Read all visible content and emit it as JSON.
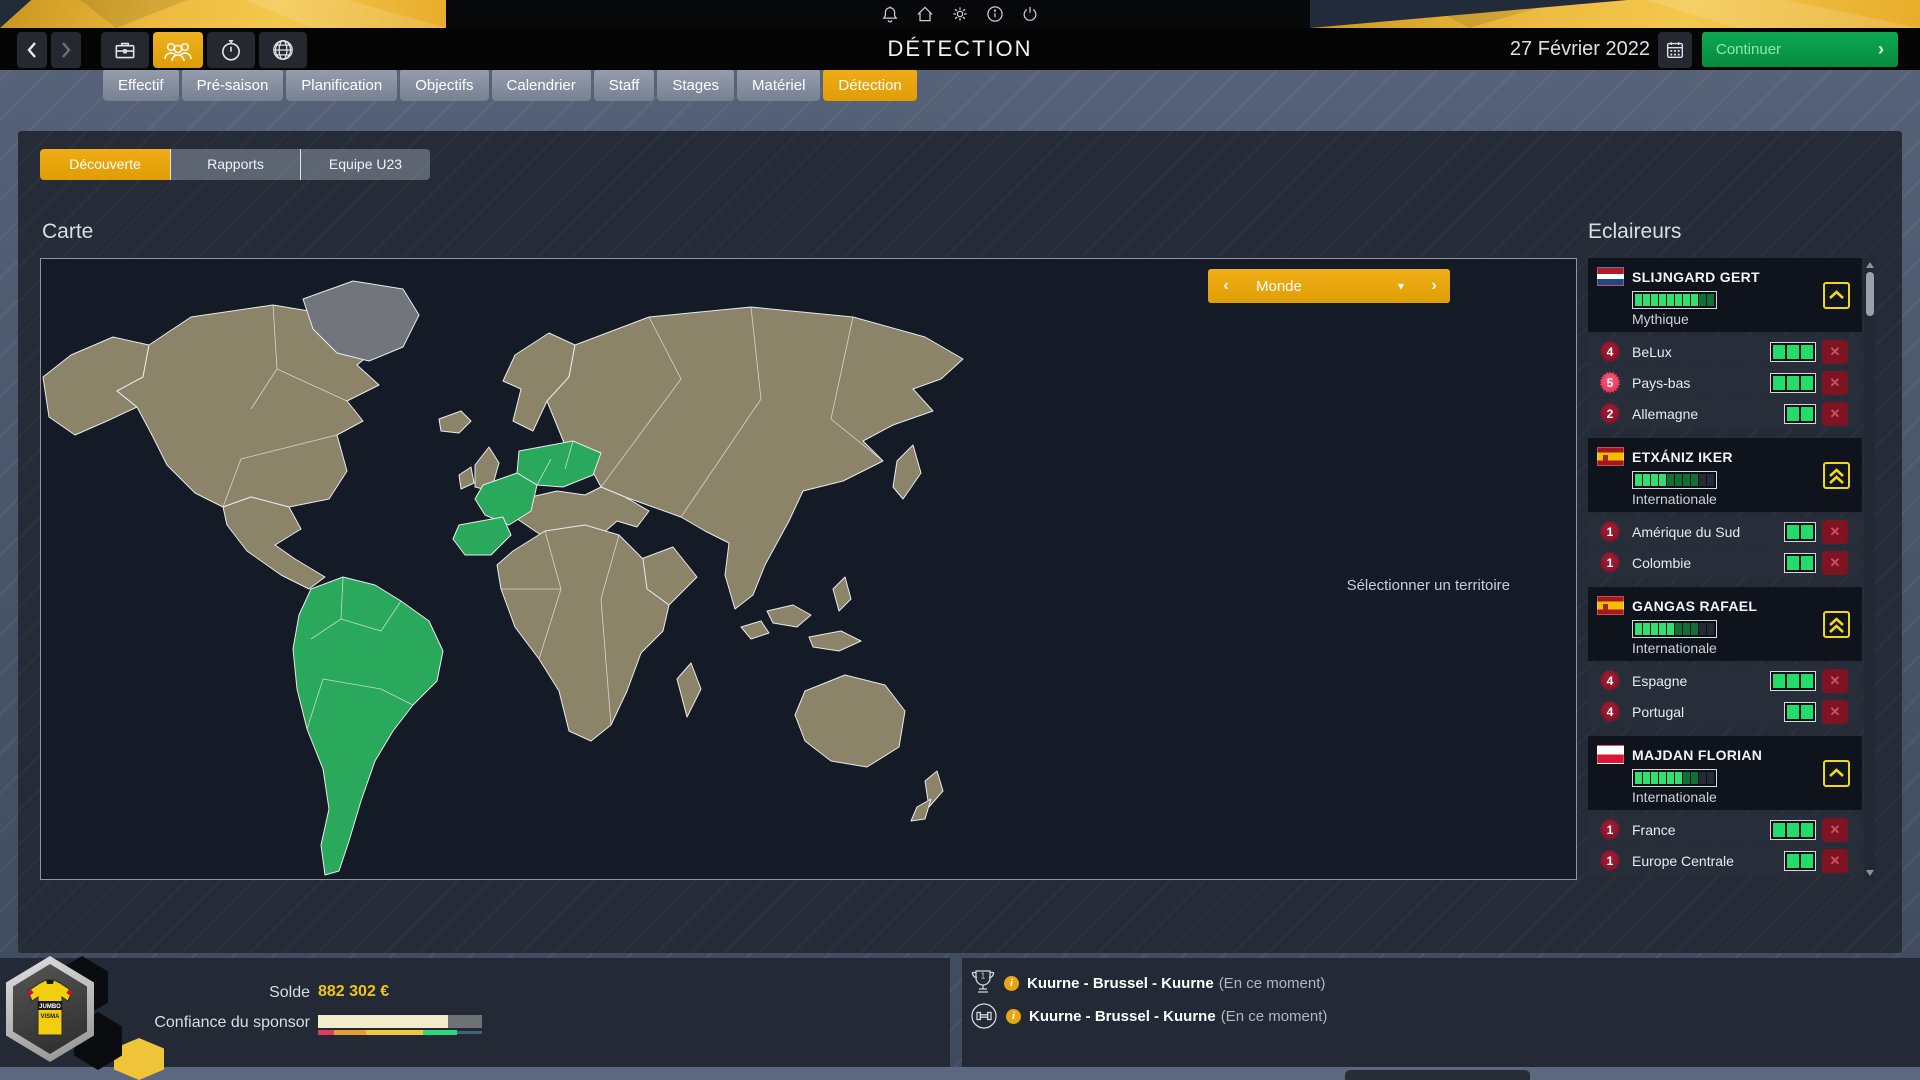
{
  "topbar": {
    "icons": [
      "bell",
      "home",
      "settings",
      "info",
      "power"
    ]
  },
  "header": {
    "title": "DÉTECTION",
    "date": "27 Février 2022",
    "continue_label": "Continuer",
    "nav_icons": [
      "back",
      "forward",
      "briefcase",
      "scouts-trio",
      "stopwatch",
      "globe",
      "calendar"
    ]
  },
  "nav_tabs": {
    "items": [
      {
        "label": "Effectif",
        "active": false
      },
      {
        "label": "Pré-saison",
        "active": false
      },
      {
        "label": "Planification",
        "active": false
      },
      {
        "label": "Objectifs",
        "active": false
      },
      {
        "label": "Calendrier",
        "active": false
      },
      {
        "label": "Staff",
        "active": false
      },
      {
        "label": "Stages",
        "active": false
      },
      {
        "label": "Matériel",
        "active": false
      },
      {
        "label": "Détection",
        "active": true
      }
    ]
  },
  "sub_tabs": {
    "items": [
      {
        "label": "Découverte",
        "active": true
      },
      {
        "label": "Rapports",
        "active": false
      },
      {
        "label": "Equipe U23",
        "active": false
      }
    ]
  },
  "map_section": {
    "title": "Carte",
    "territory_selector": {
      "label": "Monde"
    },
    "hint": "Sélectionner un territoire",
    "colors": {
      "ocean": "#141a26",
      "land": "#8b8468",
      "scouted": "#2aa85c",
      "inactive": "#72767c",
      "border": "#e8eaec"
    },
    "regions_highlighted_green": [
      "South America",
      "Iberia",
      "France",
      "Central Europe"
    ],
    "regions_gray": [
      "Greenland"
    ]
  },
  "scouts_panel": {
    "title": "Eclaireurs",
    "scouts": [
      {
        "name": "SLIJNGARD GERT",
        "flag": "nl",
        "level": "Mythique",
        "skill": {
          "bright": 8,
          "dark": 2,
          "total": 10
        },
        "expand": "single",
        "regions": [
          {
            "count": "4",
            "name": "BeLux",
            "slots": 3,
            "highlight": false
          },
          {
            "count": "5",
            "name": "Pays-bas",
            "slots": 3,
            "highlight": true
          },
          {
            "count": "2",
            "name": "Allemagne",
            "slots": 2,
            "highlight": false
          }
        ]
      },
      {
        "name": "ETXÁNIZ IKER",
        "flag": "es",
        "level": "Internationale",
        "skill": {
          "bright": 4,
          "dark": 4,
          "total": 10
        },
        "expand": "double",
        "regions": [
          {
            "count": "1",
            "name": "Amérique du Sud",
            "slots": 2,
            "highlight": false
          },
          {
            "count": "1",
            "name": "Colombie",
            "slots": 2,
            "highlight": false
          }
        ]
      },
      {
        "name": "GANGAS RAFAEL",
        "flag": "es",
        "level": "Internationale",
        "skill": {
          "bright": 5,
          "dark": 3,
          "total": 10
        },
        "expand": "double",
        "regions": [
          {
            "count": "4",
            "name": "Espagne",
            "slots": 3,
            "highlight": false
          },
          {
            "count": "4",
            "name": "Portugal",
            "slots": 2,
            "highlight": false
          }
        ]
      },
      {
        "name": "MAJDAN FLORIAN",
        "flag": "pl",
        "level": "Internationale",
        "skill": {
          "bright": 6,
          "dark": 2,
          "total": 10
        },
        "expand": "single",
        "regions": [
          {
            "count": "1",
            "name": "France",
            "slots": 3,
            "highlight": false
          },
          {
            "count": "1",
            "name": "Europe Centrale",
            "slots": 2,
            "highlight": false
          }
        ]
      }
    ]
  },
  "footer": {
    "team_logo_label": "JUMBO VISMA",
    "solde_label": "Solde",
    "solde_value": "882 302 €",
    "sponsor_label": "Confiance du sponsor",
    "sponsor_confidence": {
      "fill_pct": 79,
      "segments": [
        {
          "color": "#e23a5f",
          "pct": 10
        },
        {
          "color": "#e89b2e",
          "pct": 19
        },
        {
          "color": "#edc937",
          "pct": 35
        },
        {
          "color": "#2bd97e",
          "pct": 21
        },
        {
          "color": "#3d657e",
          "pct": 15
        }
      ]
    },
    "events": [
      {
        "icon": "trophy",
        "title": "Kuurne - Brussel - Kuurne",
        "status": "(En ce moment)"
      },
      {
        "icon": "training",
        "title": "Kuurne - Brussel - Kuurne",
        "status": "(En ce moment)"
      }
    ]
  },
  "colors": {
    "accent_orange": "#e8a613",
    "continue_green": "#0caa52",
    "skill_green": "#2de271",
    "danger_red": "#7e1422"
  }
}
